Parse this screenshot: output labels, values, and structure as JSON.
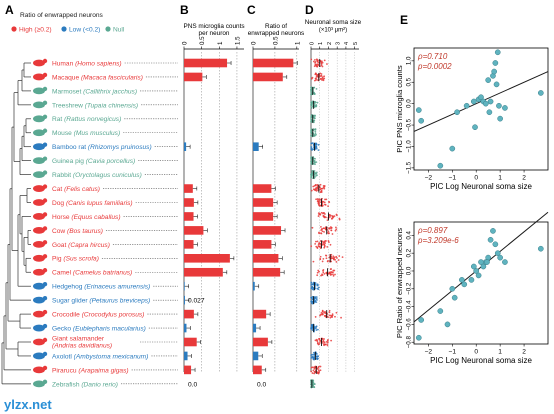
{
  "panels": {
    "a": "A",
    "b": "B",
    "c": "C",
    "d": "D",
    "e": "E"
  },
  "legend": {
    "title": "Ratio of enwrapped neurons",
    "high": "High (≥0.2)",
    "low": "Low (<0.2)",
    "null": "Null"
  },
  "colors": {
    "high": "#e8393a",
    "low": "#2b7bbf",
    "null": "#5aa892",
    "point": "#5fb3bf",
    "fit": "#1a1a1a",
    "stat": "#c0392b"
  },
  "species": [
    {
      "common": "Human",
      "latin": "Homo sapiens",
      "group": "high",
      "icon": "human-icon"
    },
    {
      "common": "Macaque",
      "latin": "Macaca fascicularis",
      "group": "high",
      "icon": "macaque-icon"
    },
    {
      "common": "Marmoset",
      "latin": "Callithrix jacchus",
      "group": "null",
      "icon": "marmoset-icon"
    },
    {
      "common": "Treeshrew",
      "latin": "Tupaia chinensis",
      "group": "null",
      "icon": "treeshrew-icon"
    },
    {
      "common": "Rat",
      "latin": "Rattus norvegicus",
      "group": "null",
      "icon": "rat-icon"
    },
    {
      "common": "Mouse",
      "latin": "Mus musculus",
      "group": "null",
      "icon": "mouse-icon"
    },
    {
      "common": "Bamboo rat",
      "latin": "Rhizomys pruinosus",
      "group": "low",
      "icon": "bamboo-rat-icon"
    },
    {
      "common": "Guinea pig",
      "latin": "Cavia porcellus",
      "group": "null",
      "icon": "guinea-pig-icon"
    },
    {
      "common": "Rabbit",
      "latin": "Oryctolagus cuniculus",
      "group": "null",
      "icon": "rabbit-icon"
    },
    {
      "common": "Cat",
      "latin": "Felis catus",
      "group": "high",
      "icon": "cat-icon"
    },
    {
      "common": "Dog",
      "latin": "Canis lupus familiaris",
      "group": "high",
      "icon": "dog-icon"
    },
    {
      "common": "Horse",
      "latin": "Equus caballus",
      "group": "high",
      "icon": "horse-icon"
    },
    {
      "common": "Cow",
      "latin": "Bos taurus",
      "group": "high",
      "icon": "cow-icon"
    },
    {
      "common": "Goat",
      "latin": "Capra hircus",
      "group": "high",
      "icon": "goat-icon"
    },
    {
      "common": "Pig",
      "latin": "Sus scrofa",
      "group": "high",
      "icon": "pig-icon"
    },
    {
      "common": "Camel",
      "latin": "Camelus batrianus",
      "group": "high",
      "icon": "camel-icon"
    },
    {
      "common": "Hedgehog",
      "latin": "Erinaceus amurensis",
      "group": "low",
      "icon": "hedgehog-icon"
    },
    {
      "common": "Sugar glider",
      "latin": "Petaurus breviceps",
      "group": "low",
      "icon": "sugar-glider-icon"
    },
    {
      "common": "Crocodile",
      "latin": "Crocodylus porosus",
      "group": "high",
      "icon": "crocodile-icon"
    },
    {
      "common": "Gecko",
      "latin": "Eublepharis macularius",
      "group": "low",
      "icon": "gecko-icon"
    },
    {
      "common": "Giant salamander",
      "latin": "Andrias davidianus",
      "group": "high",
      "icon": "salamander-icon"
    },
    {
      "common": "Axolotl",
      "latin": "Ambystoma mexicanum",
      "group": "low",
      "icon": "axolotl-icon"
    },
    {
      "common": "Pirarucu",
      "latin": "Arapaima gigas",
      "group": "high",
      "icon": "pirarucu-icon"
    },
    {
      "common": "Zebrafish",
      "latin": "Danio rerio",
      "group": "null",
      "icon": "zebrafish-icon"
    }
  ],
  "chart_data": [
    {
      "id": "B",
      "type": "bar",
      "title": "PNS microglia counts per neuron",
      "ticks": [
        0,
        0.5,
        1,
        1.5
      ],
      "ticklabels": [
        "0",
        "0.5",
        "1",
        "1.5"
      ],
      "xlim": [
        0,
        1.7
      ],
      "values": [
        1.22,
        0.52,
        0,
        0,
        0,
        0,
        0.06,
        0,
        0,
        0.25,
        0.28,
        0.27,
        0.55,
        0.27,
        1.3,
        1.1,
        0.02,
        0.027,
        0.28,
        0.07,
        0.36,
        0.1,
        0.2,
        0.0
      ],
      "annotations": [
        {
          "index": 17,
          "text": "0.027"
        },
        {
          "index": 23,
          "text": "0.0"
        }
      ]
    },
    {
      "id": "C",
      "type": "bar",
      "title": "Ratio of enwrapped neurons",
      "ticks": [
        0,
        0.5,
        1
      ],
      "ticklabels": [
        "0",
        "0.5",
        "1"
      ],
      "xlim": [
        0,
        1.05
      ],
      "values": [
        0.92,
        0.68,
        0,
        0,
        0,
        0,
        0.13,
        0,
        0,
        0.42,
        0.46,
        0.46,
        0.64,
        0.42,
        0.58,
        0.62,
        0.04,
        0.0,
        0.3,
        0.07,
        0.34,
        0.12,
        0.2,
        0.0
      ],
      "annotations": [
        {
          "index": 23,
          "text": "0.0"
        }
      ]
    },
    {
      "id": "D",
      "type": "scatter",
      "title": "Neuronal soma size",
      "unit": "(×10³ μm²)",
      "ticks": [
        0,
        1,
        2,
        3,
        4,
        5
      ],
      "ticklabels": [
        "0",
        "1",
        "2",
        "3",
        "4",
        "5"
      ],
      "xlim": [
        0,
        5.5
      ],
      "medians": [
        1.0,
        0.9,
        0.2,
        0.3,
        0.2,
        0.2,
        0.4,
        0.2,
        0.3,
        0.9,
        1.2,
        2.0,
        1.8,
        1.2,
        2.2,
        1.9,
        0.4,
        0.3,
        1.8,
        0.3,
        1.2,
        0.5,
        0.6,
        0.1
      ]
    },
    {
      "id": "E1",
      "type": "scatter",
      "ylabel": "PIC PNS microglia counts",
      "xlabel": "PIC Log Neuronal soma size",
      "rho": "ρ=0.710",
      "p": "p=0.0002",
      "xlim": [
        -2.6,
        3.0
      ],
      "ylim": [
        -1.55,
        1.3
      ],
      "xticks": [
        -2,
        -1,
        0,
        1,
        2
      ],
      "yticks": [
        -1.5,
        -1,
        -0.5,
        0,
        0.5,
        1
      ],
      "xticklabels": [
        "−2",
        "−1",
        "0",
        "1",
        "2"
      ],
      "yticklabels": [
        "−1.5",
        "−1.0",
        "−0.5",
        "0.0",
        "0.5",
        "1.0"
      ],
      "fit": {
        "slope": 0.25,
        "intercept": 0.0
      },
      "x": [
        -2.3,
        -2.4,
        -1.5,
        -1.0,
        -0.4,
        -0.1,
        -0.05,
        0.1,
        0.2,
        0.3,
        0.4,
        0.5,
        0.6,
        0.7,
        0.75,
        0.8,
        0.85,
        0.9,
        0.95,
        1.0,
        1.2,
        2.7,
        -0.8,
        0.55
      ],
      "y": [
        -0.4,
        -0.15,
        -1.45,
        -1.05,
        -0.05,
        0.05,
        -0.55,
        0.1,
        0.15,
        0.05,
        0.0,
        0.55,
        0.05,
        0.65,
        0.75,
        0.95,
        0.45,
        1.2,
        -0.05,
        -0.35,
        -0.1,
        0.25,
        -0.2,
        -0.2
      ]
    },
    {
      "id": "E2",
      "type": "scatter",
      "ylabel": "PIC Ratio of enwrapped neurons",
      "xlabel": "PIC Log Neuronal soma size",
      "rho": "ρ=0.897",
      "p": "p=3.209e-6",
      "xlim": [
        -2.6,
        3.0
      ],
      "ylim": [
        -0.82,
        0.55
      ],
      "xticks": [
        -2,
        -1,
        0,
        1,
        2
      ],
      "yticks": [
        -0.8,
        -0.6,
        -0.4,
        -0.2,
        0,
        0.2,
        0.4
      ],
      "xticklabels": [
        "−2",
        "−1",
        "0",
        "1",
        "2"
      ],
      "yticklabels": [
        "−0.8",
        "−0.6",
        "−0.4",
        "−0.2",
        "0.0",
        "0.2",
        "0.4"
      ],
      "fit": {
        "slope": 0.22,
        "intercept": 0.0
      },
      "x": [
        -2.4,
        -2.3,
        -1.5,
        -1.2,
        -1.0,
        -0.9,
        -0.5,
        -0.2,
        -0.1,
        0.0,
        0.2,
        0.3,
        0.4,
        0.5,
        0.6,
        0.7,
        0.8,
        0.9,
        1.0,
        1.2,
        2.7,
        -0.6,
        0.1,
        0.45
      ],
      "y": [
        -0.75,
        -0.55,
        -0.45,
        -0.6,
        -0.2,
        -0.3,
        -0.15,
        -0.1,
        0.05,
        0.0,
        0.1,
        0.05,
        0.1,
        0.15,
        0.35,
        0.45,
        0.3,
        0.2,
        0.15,
        0.1,
        0.25,
        -0.1,
        -0.05,
        0.1
      ]
    }
  ],
  "watermark": "ylzx.net"
}
